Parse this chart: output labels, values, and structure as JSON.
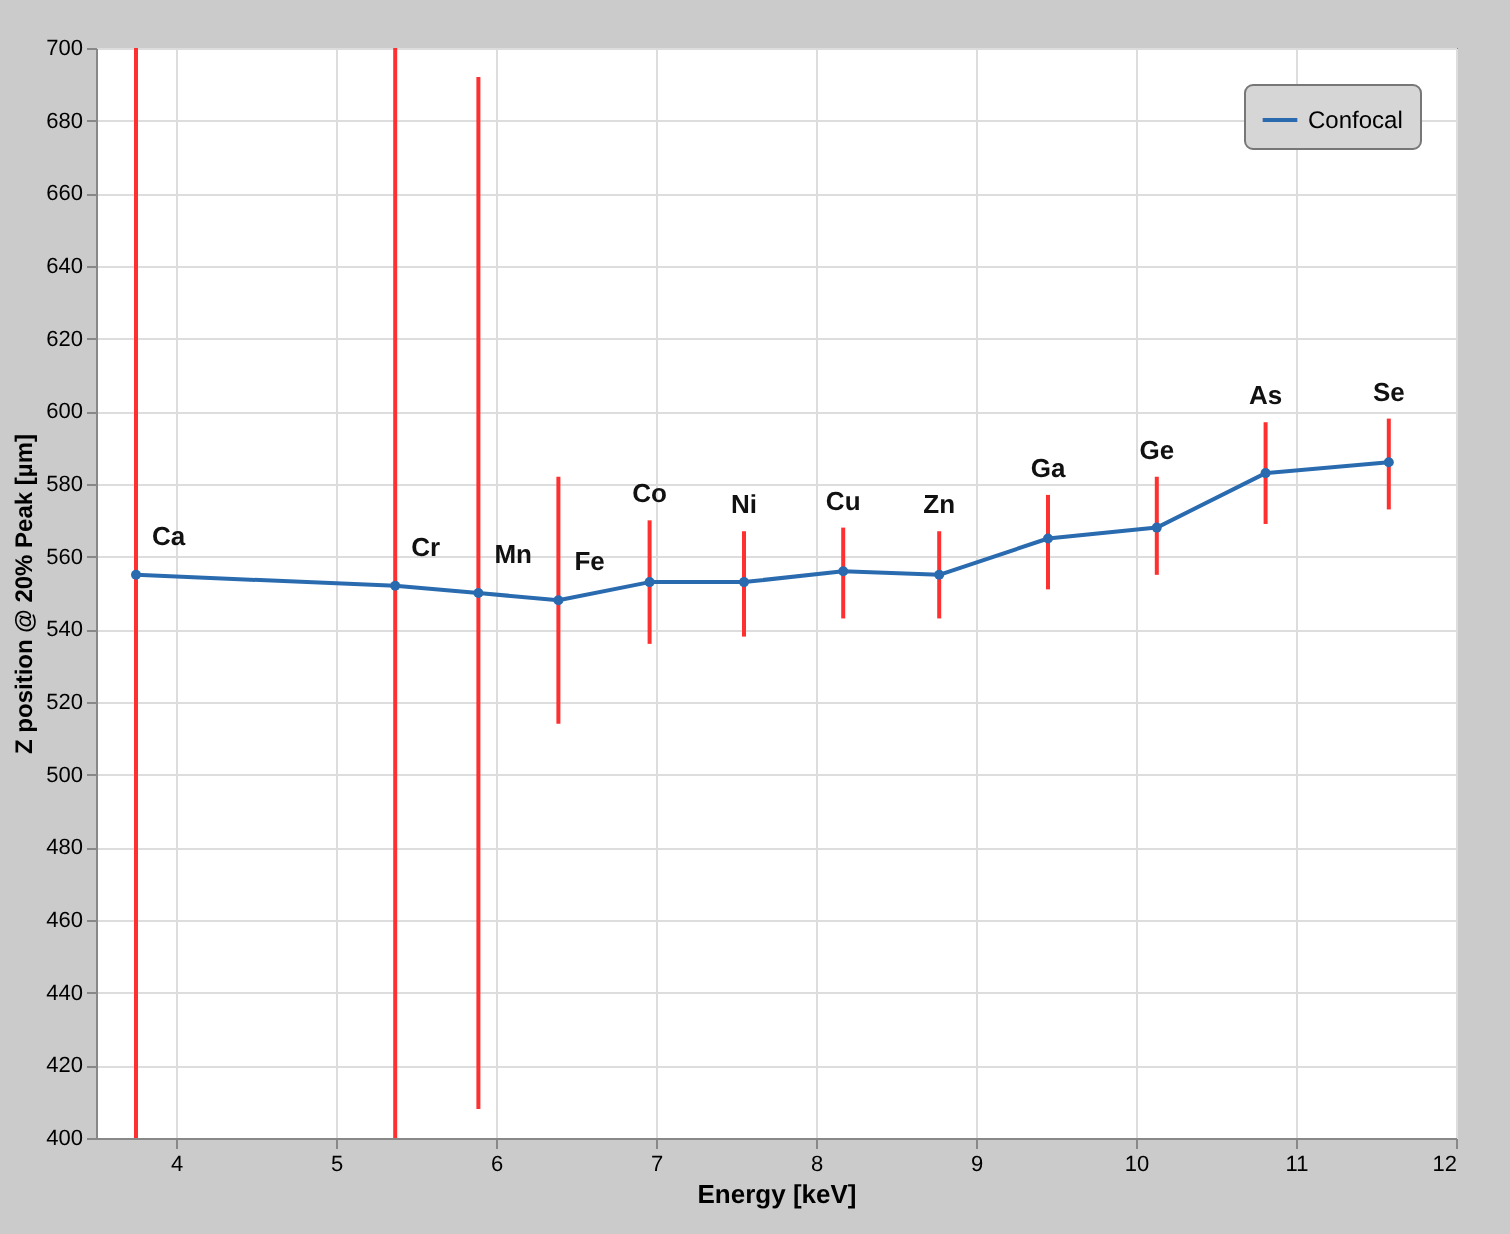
{
  "chart_data": {
    "type": "line",
    "xlabel": "Energy [keV]",
    "ylabel": "Z position @ 20% Peak [µm]",
    "x": [
      3.75,
      5.37,
      5.89,
      6.39,
      6.96,
      7.55,
      8.17,
      8.77,
      9.45,
      10.13,
      10.81,
      11.58
    ],
    "series": [
      {
        "name": "Confocal",
        "color": "#2a6bb0",
        "values": [
          555,
          552,
          550,
          548,
          553,
          553,
          556,
          555,
          565,
          568,
          583,
          586
        ],
        "errors": [
          [
            400,
            700
          ],
          [
            400,
            700
          ],
          [
            408,
            692
          ],
          [
            514,
            582
          ],
          [
            536,
            570
          ],
          [
            538,
            567
          ],
          [
            543,
            568
          ],
          [
            543,
            567
          ],
          [
            551,
            577
          ],
          [
            555,
            582
          ],
          [
            569,
            597
          ],
          [
            573,
            598
          ]
        ]
      }
    ],
    "xlim": [
      3.5,
      12
    ],
    "xticks": [
      4,
      5,
      6,
      7,
      8,
      9,
      10,
      11,
      12
    ],
    "ylim": [
      400,
      700
    ],
    "yticks": [
      400,
      420,
      440,
      460,
      480,
      500,
      520,
      540,
      560,
      580,
      600,
      620,
      640,
      660,
      680,
      700
    ],
    "grid": true,
    "legend": "top right",
    "marker": "circle",
    "line_style": "solid",
    "annotations": [
      {
        "text": "Ca",
        "x": 3.75,
        "y": 555
      },
      {
        "text": "Cr",
        "x": 5.37,
        "y": 552
      },
      {
        "text": "Mn",
        "x": 5.89,
        "y": 550
      },
      {
        "text": "Fe",
        "x": 6.39,
        "y": 548
      },
      {
        "text": "Co",
        "x": 6.96,
        "y": 553
      },
      {
        "text": "Ni",
        "x": 7.55,
        "y": 553
      },
      {
        "text": "Cu",
        "x": 8.17,
        "y": 556
      },
      {
        "text": "Zn",
        "x": 8.77,
        "y": 555
      },
      {
        "text": "Ga",
        "x": 9.45,
        "y": 565
      },
      {
        "text": "Ge",
        "x": 10.13,
        "y": 568
      },
      {
        "text": "As",
        "x": 10.81,
        "y": 583
      },
      {
        "text": "Se",
        "x": 11.58,
        "y": 586
      }
    ]
  }
}
